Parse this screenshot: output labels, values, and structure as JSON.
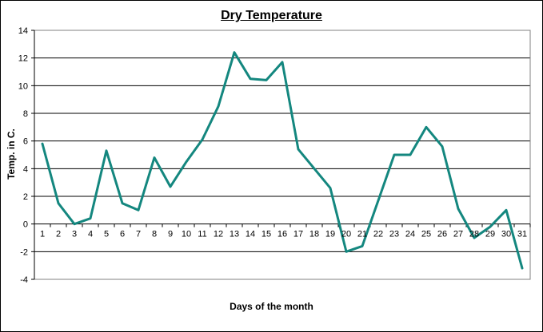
{
  "chart_data": {
    "type": "line",
    "title": "Dry Temperature",
    "xlabel": "Days of the month",
    "ylabel": "Temp. in C.",
    "ylim": [
      -4,
      14
    ],
    "y_ticks": [
      14,
      12,
      10,
      8,
      6,
      4,
      2,
      0,
      -2,
      -4
    ],
    "grid": "horizontal",
    "categories": [
      "1",
      "2",
      "3",
      "4",
      "5",
      "6",
      "7",
      "8",
      "9",
      "10",
      "11",
      "12",
      "13",
      "14",
      "15",
      "16",
      "17",
      "18",
      "19",
      "20",
      "21",
      "22",
      "23",
      "24",
      "25",
      "26",
      "27",
      "28",
      "29",
      "30",
      "31"
    ],
    "series": [
      {
        "values": [
          5.8,
          1.5,
          0.0,
          0.4,
          5.3,
          1.5,
          1.0,
          4.8,
          2.7,
          4.5,
          6.1,
          8.5,
          12.4,
          10.5,
          10.4,
          11.7,
          5.4,
          4.0,
          2.6,
          -2.0,
          -1.6,
          1.7,
          5.0,
          5.0,
          7.0,
          5.6,
          1.1,
          -1.0,
          -0.2,
          1.0,
          -3.2
        ],
        "color": "#14877f"
      }
    ]
  }
}
